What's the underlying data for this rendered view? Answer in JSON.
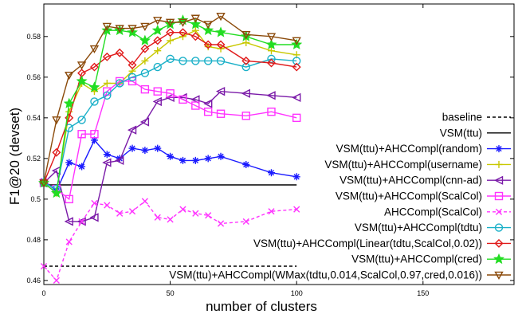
{
  "chart_data": {
    "type": "line",
    "xlabel": "number of clusters",
    "ylabel": "F1@20 (devset)",
    "xlim": [
      0,
      186
    ],
    "ylim": [
      0.458,
      0.596
    ],
    "x_ticks": [
      "0",
      "50",
      "100",
      "150"
    ],
    "x_tick_values": [
      0,
      50,
      100,
      150
    ],
    "y_ticks": [
      "0.46",
      "0.48",
      "0.5",
      "0.52",
      "0.54",
      "0.56",
      "0.58"
    ],
    "y_tick_values": [
      0.46,
      0.48,
      0.5,
      0.52,
      0.54,
      0.56,
      0.58
    ],
    "grid": false,
    "legend_position": "right",
    "series": [
      {
        "name": "baseline",
        "color": "#000000",
        "style": "dashed",
        "marker": "none",
        "x": [
          0,
          100
        ],
        "y": [
          0.467,
          0.467
        ]
      },
      {
        "name": "VSM(ttu)",
        "color": "#000000",
        "style": "solid",
        "marker": "none",
        "x": [
          0,
          100
        ],
        "y": [
          0.507,
          0.507
        ]
      },
      {
        "name": "VSM(ttu)+AHCCompl(random)",
        "color": "#1a1aff",
        "style": "solid",
        "marker": "asterisk",
        "x": [
          0,
          5,
          10,
          15,
          20,
          25,
          30,
          35,
          40,
          45,
          50,
          55,
          60,
          65,
          70,
          80,
          90,
          100
        ],
        "y": [
          0.509,
          0.504,
          0.518,
          0.516,
          0.529,
          0.522,
          0.52,
          0.525,
          0.524,
          0.525,
          0.521,
          0.519,
          0.519,
          0.52,
          0.521,
          0.517,
          0.513,
          0.511
        ]
      },
      {
        "name": "VSM(ttu)+AHCCompl(username)",
        "color": "#c8c800",
        "style": "solid",
        "marker": "plus",
        "x": [
          0,
          5,
          10,
          15,
          20,
          25,
          30,
          35,
          40,
          45,
          50,
          55,
          60,
          65,
          70,
          80,
          90,
          100
        ],
        "y": [
          0.508,
          0.503,
          0.543,
          0.557,
          0.553,
          0.557,
          0.557,
          0.563,
          0.568,
          0.573,
          0.578,
          0.58,
          0.583,
          0.575,
          0.574,
          0.577,
          0.573,
          0.571
        ]
      },
      {
        "name": "VSM(ttu)+AHCCompl(cnn-ad)",
        "color": "#7a1aa8",
        "style": "solid",
        "marker": "triangle-left",
        "x": [
          0,
          5,
          10,
          15,
          20,
          25,
          30,
          35,
          40,
          45,
          50,
          55,
          60,
          65,
          70,
          80,
          90,
          100
        ],
        "y": [
          0.508,
          0.514,
          0.489,
          0.489,
          0.491,
          0.518,
          0.519,
          0.534,
          0.538,
          0.548,
          0.55,
          0.55,
          0.549,
          0.547,
          0.553,
          0.552,
          0.551,
          0.55
        ]
      },
      {
        "name": "VSM(ttu)+AHCCompl(ScalCol)",
        "color": "#ff33ff",
        "style": "solid",
        "marker": "square",
        "x": [
          0,
          5,
          10,
          15,
          20,
          25,
          30,
          35,
          40,
          45,
          50,
          55,
          60,
          65,
          70,
          80,
          90,
          100
        ],
        "y": [
          0.508,
          0.505,
          0.5,
          0.532,
          0.532,
          0.553,
          0.558,
          0.558,
          0.554,
          0.553,
          0.552,
          0.549,
          0.546,
          0.543,
          0.542,
          0.541,
          0.543,
          0.54
        ]
      },
      {
        "name": "AHCCompl(ScalCol)",
        "color": "#ff33ff",
        "style": "dashed",
        "marker": "x",
        "x": [
          0,
          5,
          10,
          15,
          20,
          25,
          30,
          35,
          40,
          45,
          50,
          55,
          60,
          65,
          70,
          80,
          90,
          100
        ],
        "y": [
          0.467,
          0.46,
          0.479,
          0.489,
          0.498,
          0.497,
          0.493,
          0.494,
          0.499,
          0.491,
          0.49,
          0.495,
          0.493,
          0.492,
          0.488,
          0.489,
          0.494,
          0.495
        ]
      },
      {
        "name": "VSM(ttu)+AHCCompl(tdtu)",
        "color": "#1ab0c8",
        "style": "solid",
        "marker": "circle",
        "x": [
          0,
          5,
          10,
          15,
          20,
          25,
          30,
          35,
          40,
          45,
          50,
          55,
          60,
          65,
          70,
          80,
          90,
          100
        ],
        "y": [
          0.508,
          0.505,
          0.535,
          0.539,
          0.548,
          0.551,
          0.557,
          0.56,
          0.562,
          0.565,
          0.569,
          0.568,
          0.568,
          0.568,
          0.568,
          0.565,
          0.569,
          0.568
        ]
      },
      {
        "name": "VSM(ttu)+AHCCompl(Linear(tdtu,ScalCol,0.02))",
        "color": "#e01a1a",
        "style": "solid",
        "marker": "diamond",
        "x": [
          0,
          5,
          10,
          15,
          20,
          25,
          30,
          35,
          40,
          45,
          50,
          55,
          60,
          65,
          70,
          80,
          90,
          100
        ],
        "y": [
          0.508,
          0.523,
          0.54,
          0.562,
          0.565,
          0.57,
          0.572,
          0.566,
          0.574,
          0.578,
          0.582,
          0.582,
          0.58,
          0.576,
          0.576,
          0.568,
          0.567,
          0.565
        ]
      },
      {
        "name": "VSM(ttu)+AHCCompl(cred)",
        "color": "#22dd22",
        "style": "solid",
        "marker": "star",
        "x": [
          0,
          5,
          10,
          15,
          20,
          25,
          30,
          35,
          40,
          45,
          50,
          55,
          60,
          65,
          70,
          80,
          90,
          100
        ],
        "y": [
          0.508,
          0.503,
          0.547,
          0.558,
          0.555,
          0.583,
          0.583,
          0.582,
          0.578,
          0.583,
          0.586,
          0.588,
          0.586,
          0.583,
          0.582,
          0.58,
          0.576,
          0.576
        ]
      },
      {
        "name": "VSM(ttu)+AHCCompl(WMax(tdtu,0.014,ScalCol,0.97,cred,0.016))",
        "color": "#8b4a0a",
        "style": "solid",
        "marker": "triangle-down",
        "x": [
          0,
          5,
          10,
          15,
          20,
          25,
          30,
          35,
          40,
          45,
          50,
          55,
          60,
          65,
          70,
          80,
          90,
          100
        ],
        "y": [
          0.508,
          0.539,
          0.561,
          0.566,
          0.574,
          0.585,
          0.584,
          0.584,
          0.585,
          0.588,
          0.587,
          0.587,
          0.589,
          0.586,
          0.59,
          0.581,
          0.58,
          0.578
        ]
      }
    ]
  }
}
